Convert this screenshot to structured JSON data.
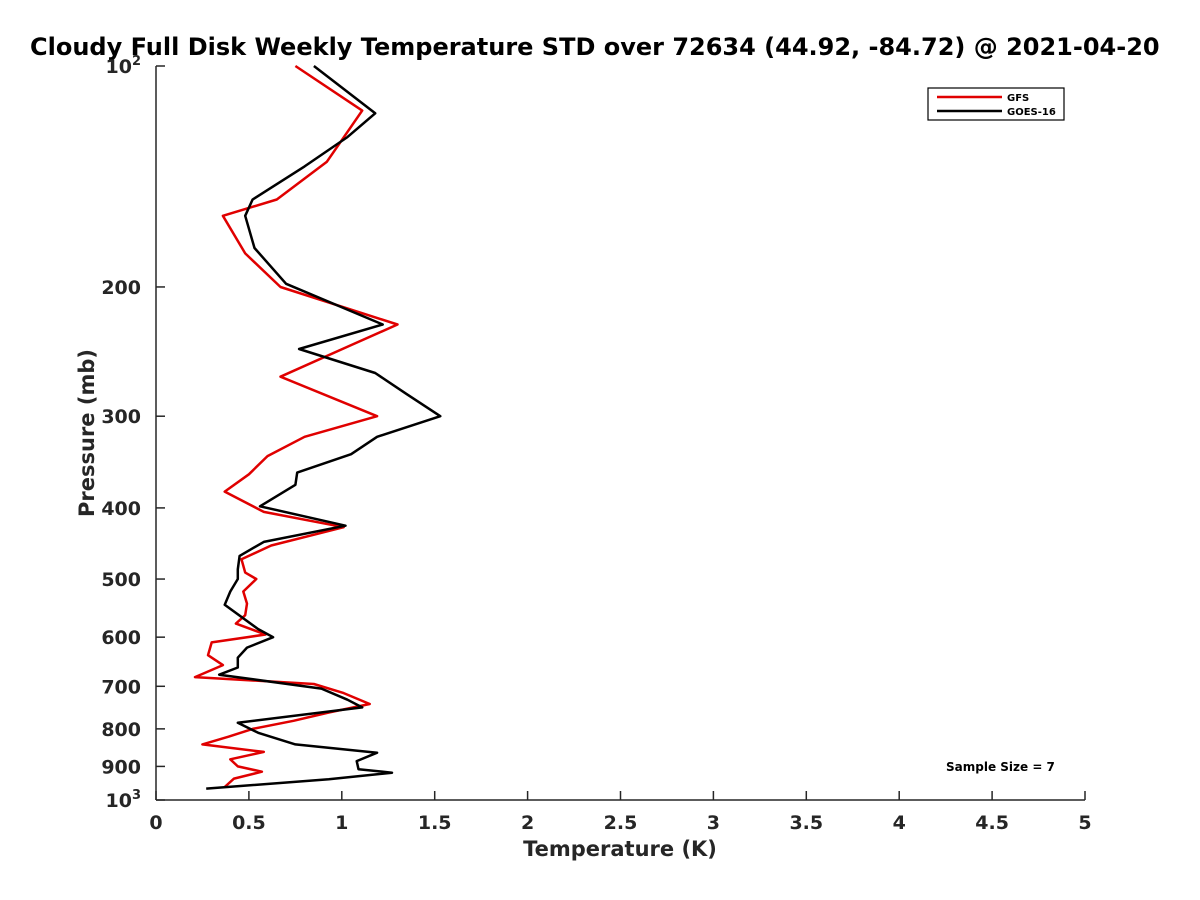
{
  "chart_data": {
    "type": "line",
    "title": "Cloudy Full Disk Weekly Temperature STD over 72634 (44.92, -84.72) @ 2021-04-20",
    "xlabel": "Temperature (K)",
    "ylabel": "Pressure (mb)",
    "xlim": [
      0,
      5
    ],
    "ylim": [
      100,
      1000
    ],
    "y_scale": "log",
    "y_reversed": true,
    "x_ticks": [
      0,
      0.5,
      1,
      1.5,
      2,
      2.5,
      3,
      3.5,
      4,
      4.5,
      5
    ],
    "x_tick_labels": [
      "0",
      "0.5",
      "1",
      "1.5",
      "2",
      "2.5",
      "3",
      "3.5",
      "4",
      "4.5",
      "5"
    ],
    "y_ticks": [
      100,
      200,
      300,
      400,
      500,
      600,
      700,
      800,
      900,
      1000
    ],
    "y_tick_labels": [
      {
        "base": "10",
        "exp": "2"
      },
      {
        "base": "200",
        "exp": ""
      },
      {
        "base": "300",
        "exp": ""
      },
      {
        "base": "400",
        "exp": ""
      },
      {
        "base": "500",
        "exp": ""
      },
      {
        "base": "600",
        "exp": ""
      },
      {
        "base": "700",
        "exp": ""
      },
      {
        "base": "800",
        "exp": ""
      },
      {
        "base": "900",
        "exp": ""
      },
      {
        "base": "10",
        "exp": "3"
      }
    ],
    "grid": false,
    "legend_position": "top-right",
    "series": [
      {
        "name": "GFS",
        "color": "#e00000",
        "points": [
          {
            "x": 0.75,
            "y": 100
          },
          {
            "x": 1.11,
            "y": 115
          },
          {
            "x": 0.92,
            "y": 135
          },
          {
            "x": 0.65,
            "y": 152
          },
          {
            "x": 0.36,
            "y": 160
          },
          {
            "x": 0.48,
            "y": 180
          },
          {
            "x": 0.67,
            "y": 200
          },
          {
            "x": 1.3,
            "y": 225
          },
          {
            "x": 1.05,
            "y": 240
          },
          {
            "x": 0.67,
            "y": 265
          },
          {
            "x": 1.19,
            "y": 300
          },
          {
            "x": 0.8,
            "y": 320
          },
          {
            "x": 0.6,
            "y": 340
          },
          {
            "x": 0.5,
            "y": 360
          },
          {
            "x": 0.37,
            "y": 380
          },
          {
            "x": 0.58,
            "y": 405
          },
          {
            "x": 1.01,
            "y": 425
          },
          {
            "x": 0.62,
            "y": 450
          },
          {
            "x": 0.46,
            "y": 470
          },
          {
            "x": 0.48,
            "y": 490
          },
          {
            "x": 0.54,
            "y": 500
          },
          {
            "x": 0.47,
            "y": 520
          },
          {
            "x": 0.49,
            "y": 540
          },
          {
            "x": 0.48,
            "y": 560
          },
          {
            "x": 0.43,
            "y": 575
          },
          {
            "x": 0.59,
            "y": 595
          },
          {
            "x": 0.3,
            "y": 610
          },
          {
            "x": 0.28,
            "y": 635
          },
          {
            "x": 0.36,
            "y": 655
          },
          {
            "x": 0.21,
            "y": 680
          },
          {
            "x": 0.85,
            "y": 695
          },
          {
            "x": 1.01,
            "y": 715
          },
          {
            "x": 1.15,
            "y": 740
          },
          {
            "x": 0.93,
            "y": 760
          },
          {
            "x": 0.74,
            "y": 780
          },
          {
            "x": 0.52,
            "y": 800
          },
          {
            "x": 0.39,
            "y": 820
          },
          {
            "x": 0.25,
            "y": 840
          },
          {
            "x": 0.58,
            "y": 860
          },
          {
            "x": 0.4,
            "y": 880
          },
          {
            "x": 0.44,
            "y": 900
          },
          {
            "x": 0.57,
            "y": 915
          },
          {
            "x": 0.42,
            "y": 935
          },
          {
            "x": 0.37,
            "y": 960
          }
        ]
      },
      {
        "name": "GOES-16",
        "color": "#000000",
        "points": [
          {
            "x": 0.85,
            "y": 100
          },
          {
            "x": 1.18,
            "y": 116
          },
          {
            "x": 1.03,
            "y": 125
          },
          {
            "x": 0.8,
            "y": 137
          },
          {
            "x": 0.52,
            "y": 152
          },
          {
            "x": 0.48,
            "y": 160
          },
          {
            "x": 0.53,
            "y": 177
          },
          {
            "x": 0.7,
            "y": 198
          },
          {
            "x": 1.22,
            "y": 225
          },
          {
            "x": 0.77,
            "y": 243
          },
          {
            "x": 1.18,
            "y": 262
          },
          {
            "x": 1.35,
            "y": 280
          },
          {
            "x": 1.53,
            "y": 300
          },
          {
            "x": 1.19,
            "y": 320
          },
          {
            "x": 1.05,
            "y": 338
          },
          {
            "x": 0.76,
            "y": 358
          },
          {
            "x": 0.75,
            "y": 372
          },
          {
            "x": 0.56,
            "y": 398
          },
          {
            "x": 1.02,
            "y": 423
          },
          {
            "x": 0.58,
            "y": 445
          },
          {
            "x": 0.45,
            "y": 465
          },
          {
            "x": 0.44,
            "y": 485
          },
          {
            "x": 0.44,
            "y": 500
          },
          {
            "x": 0.4,
            "y": 520
          },
          {
            "x": 0.37,
            "y": 542
          },
          {
            "x": 0.55,
            "y": 585
          },
          {
            "x": 0.63,
            "y": 600
          },
          {
            "x": 0.49,
            "y": 620
          },
          {
            "x": 0.44,
            "y": 640
          },
          {
            "x": 0.44,
            "y": 660
          },
          {
            "x": 0.34,
            "y": 675
          },
          {
            "x": 0.89,
            "y": 705
          },
          {
            "x": 1.03,
            "y": 730
          },
          {
            "x": 1.11,
            "y": 748
          },
          {
            "x": 0.44,
            "y": 785
          },
          {
            "x": 0.55,
            "y": 810
          },
          {
            "x": 0.75,
            "y": 840
          },
          {
            "x": 1.19,
            "y": 862
          },
          {
            "x": 1.08,
            "y": 885
          },
          {
            "x": 1.09,
            "y": 908
          },
          {
            "x": 1.27,
            "y": 918
          },
          {
            "x": 0.93,
            "y": 937
          },
          {
            "x": 0.27,
            "y": 965
          }
        ]
      }
    ],
    "annotations": [
      {
        "text": "Sample Size = 7"
      }
    ]
  }
}
